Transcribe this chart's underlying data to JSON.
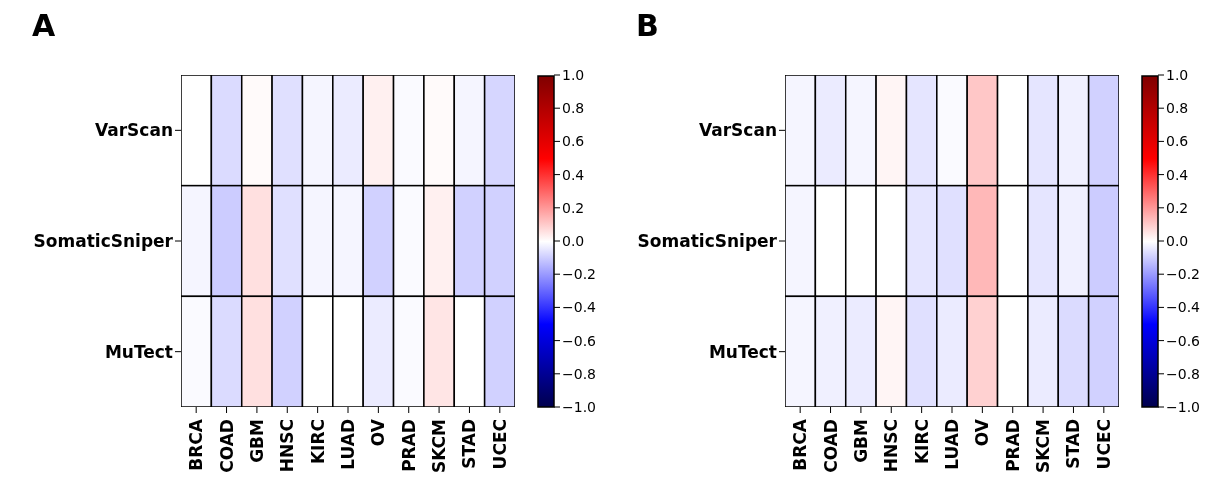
{
  "chart_data": [
    {
      "type": "heatmap",
      "title": "A",
      "categories": [
        "BRCA",
        "COAD",
        "GBM",
        "HNSC",
        "KIRC",
        "LUAD",
        "OV",
        "PRAD",
        "SKCM",
        "STAD",
        "UCEC"
      ],
      "y_categories": [
        "VarScan",
        "SomaticSniper",
        "MuTect"
      ],
      "cells": [
        [
          0.0,
          -0.07,
          0.01,
          -0.06,
          -0.02,
          -0.04,
          0.03,
          -0.01,
          0.01,
          -0.02,
          -0.08
        ],
        [
          -0.02,
          -0.1,
          0.06,
          -0.06,
          -0.02,
          -0.02,
          -0.09,
          -0.01,
          0.03,
          -0.09,
          -0.09
        ],
        [
          -0.01,
          -0.07,
          0.06,
          -0.09,
          0.0,
          0.0,
          -0.04,
          -0.01,
          0.05,
          0.0,
          -0.09
        ]
      ],
      "clim": [
        -1,
        1
      ],
      "cticks": [
        {
          "value": -1,
          "label": "−1.0"
        },
        {
          "value": -0.8,
          "label": "−0.8"
        },
        {
          "value": -0.6,
          "label": "−0.6"
        },
        {
          "value": -0.4,
          "label": "−0.4"
        },
        {
          "value": -0.2,
          "label": "−0.2"
        },
        {
          "value": 0,
          "label": "0.0"
        },
        {
          "value": 0.2,
          "label": "0.2"
        },
        {
          "value": 0.4,
          "label": "0.4"
        },
        {
          "value": 0.6,
          "label": "0.6"
        },
        {
          "value": 0.8,
          "label": "0.8"
        },
        {
          "value": 1,
          "label": "1.0"
        }
      ]
    },
    {
      "type": "heatmap",
      "title": "B",
      "categories": [
        "BRCA",
        "COAD",
        "GBM",
        "HNSC",
        "KIRC",
        "LUAD",
        "OV",
        "PRAD",
        "SKCM",
        "STAD",
        "UCEC"
      ],
      "y_categories": [
        "VarScan",
        "SomaticSniper",
        "MuTect"
      ],
      "cells": [
        [
          -0.02,
          -0.04,
          -0.02,
          0.02,
          -0.05,
          -0.01,
          0.11,
          0.0,
          -0.05,
          -0.03,
          -0.09
        ],
        [
          -0.02,
          0.0,
          0.0,
          0.0,
          -0.05,
          -0.06,
          0.14,
          0.0,
          -0.05,
          -0.03,
          -0.1
        ],
        [
          -0.02,
          -0.03,
          -0.04,
          0.02,
          -0.06,
          -0.04,
          0.09,
          0.0,
          -0.04,
          -0.07,
          -0.09
        ]
      ],
      "clim": [
        -1,
        1
      ],
      "cticks": [
        {
          "value": -1,
          "label": "−1.0"
        },
        {
          "value": -0.8,
          "label": "−0.8"
        },
        {
          "value": -0.6,
          "label": "−0.6"
        },
        {
          "value": -0.4,
          "label": "−0.4"
        },
        {
          "value": -0.2,
          "label": "−0.2"
        },
        {
          "value": 0,
          "label": "0.0"
        },
        {
          "value": 0.2,
          "label": "0.2"
        },
        {
          "value": 0.4,
          "label": "0.4"
        },
        {
          "value": 0.6,
          "label": "0.6"
        },
        {
          "value": 0.8,
          "label": "0.8"
        },
        {
          "value": 1,
          "label": "1.0"
        }
      ]
    }
  ]
}
